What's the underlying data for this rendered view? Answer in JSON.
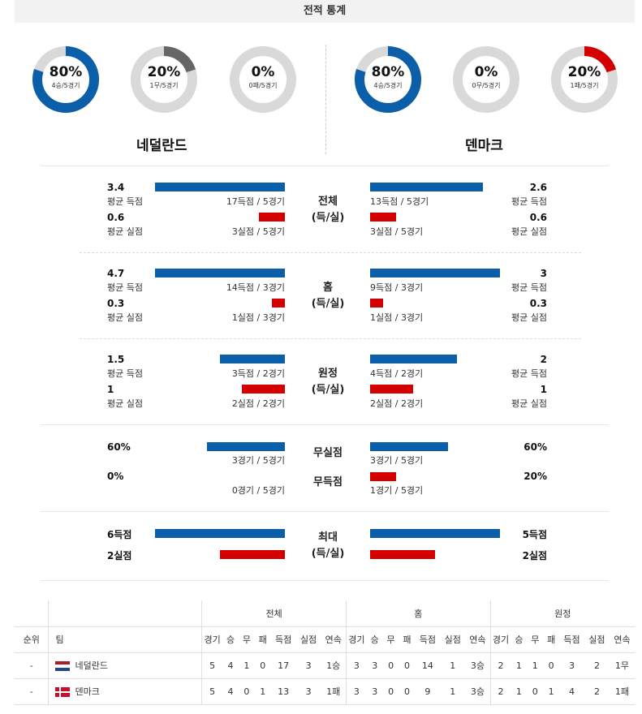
{
  "header": {
    "title": "전적 통계"
  },
  "teams": {
    "home": {
      "name": "네덜란드",
      "donuts": [
        {
          "pct": "80%",
          "sub": "4승/5경기",
          "value": 0.8,
          "color": "#0b5ea8"
        },
        {
          "pct": "20%",
          "sub": "1무/5경기",
          "value": 0.2,
          "color": "#666666"
        },
        {
          "pct": "0%",
          "sub": "0패/5경기",
          "value": 0.0,
          "color": "#d40000"
        }
      ]
    },
    "away": {
      "name": "덴마크",
      "donuts": [
        {
          "pct": "80%",
          "sub": "4승/5경기",
          "value": 0.8,
          "color": "#0b5ea8"
        },
        {
          "pct": "0%",
          "sub": "0무/5경기",
          "value": 0.0,
          "color": "#666666"
        },
        {
          "pct": "20%",
          "sub": "1패/5경기",
          "value": 0.2,
          "color": "#d40000"
        }
      ]
    }
  },
  "sections": {
    "overall": {
      "label1": "전체",
      "label2": "(득/실)",
      "home": {
        "scored": "3.4",
        "scored_lbl": "평균 득점",
        "scored_cnt": "17득점 / 5경기",
        "conceded": "0.6",
        "conceded_lbl": "평균 실점",
        "conceded_cnt": "3실점 / 5경기"
      },
      "away": {
        "scored": "2.6",
        "scored_lbl": "평균 득점",
        "scored_cnt": "13득점 / 5경기",
        "conceded": "0.6",
        "conceded_lbl": "평균 실점",
        "conceded_cnt": "3실점 / 5경기"
      }
    },
    "home_games": {
      "label1": "홈",
      "label2": "(득/실)",
      "home": {
        "scored": "4.7",
        "scored_lbl": "평균 득점",
        "scored_cnt": "14득점 / 3경기",
        "conceded": "0.3",
        "conceded_lbl": "평균 실점",
        "conceded_cnt": "1실점 / 3경기"
      },
      "away": {
        "scored": "3",
        "scored_lbl": "평균 득점",
        "scored_cnt": "9득점 / 3경기",
        "conceded": "0.3",
        "conceded_lbl": "평균 실점",
        "conceded_cnt": "1실점 / 3경기"
      }
    },
    "away_games": {
      "label1": "원정",
      "label2": "(득/실)",
      "home": {
        "scored": "1.5",
        "scored_lbl": "평균 득점",
        "scored_cnt": "3득점 / 2경기",
        "conceded": "1",
        "conceded_lbl": "평균 실점",
        "conceded_cnt": "2실점 / 2경기"
      },
      "away": {
        "scored": "2",
        "scored_lbl": "평균 득점",
        "scored_cnt": "4득점 / 2경기",
        "conceded": "1",
        "conceded_lbl": "평균 실점",
        "conceded_cnt": "2실점 / 2경기"
      }
    },
    "clean": {
      "label_cs": "무실점",
      "label_fs": "무득점",
      "home": {
        "cs": "60%",
        "cs_cnt": "3경기 / 5경기",
        "fs": "0%",
        "fs_cnt": "0경기 / 5경기"
      },
      "away": {
        "cs": "60%",
        "cs_cnt": "3경기 / 5경기",
        "fs": "20%",
        "fs_cnt": "1경기 / 5경기"
      }
    },
    "max": {
      "label1": "최대",
      "label2": "(득/실)",
      "home": {
        "scored": "6득점",
        "conceded": "2실점"
      },
      "away": {
        "scored": "5득점",
        "conceded": "2실점"
      }
    }
  },
  "table": {
    "group_headers": [
      "전체",
      "홈",
      "원정"
    ],
    "col_rank": "순위",
    "col_team": "팀",
    "sub_headers": [
      "경기",
      "승",
      "무",
      "패",
      "득점",
      "실점",
      "연속"
    ],
    "rows": [
      {
        "rank": "-",
        "team": "네덜란드",
        "flag": "netherlands-flag",
        "overall": [
          "5",
          "4",
          "1",
          "0",
          "17",
          "3",
          "1승"
        ],
        "home": [
          "3",
          "3",
          "0",
          "0",
          "14",
          "1",
          "3승"
        ],
        "away": [
          "2",
          "1",
          "1",
          "0",
          "3",
          "2",
          "1무"
        ]
      },
      {
        "rank": "-",
        "team": "덴마크",
        "flag": "denmark-flag",
        "overall": [
          "5",
          "4",
          "0",
          "1",
          "13",
          "3",
          "1패"
        ],
        "home": [
          "3",
          "3",
          "0",
          "0",
          "9",
          "1",
          "3승"
        ],
        "away": [
          "2",
          "1",
          "0",
          "1",
          "4",
          "2",
          "1패"
        ]
      }
    ]
  }
}
